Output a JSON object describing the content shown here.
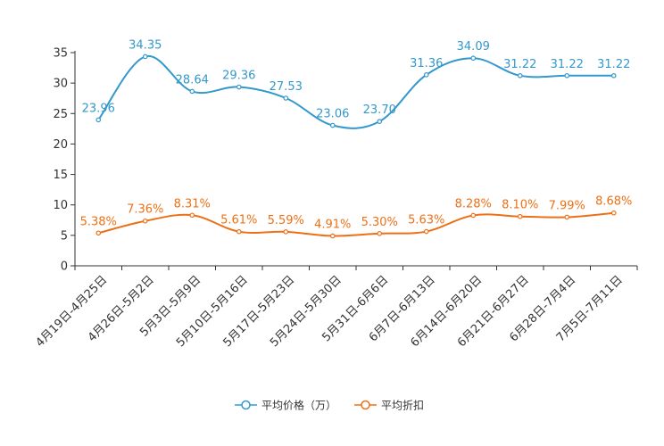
{
  "chart_data": {
    "type": "line",
    "smooth": true,
    "categories": [
      "4月19日-4月25日",
      "4月26日-5月2日",
      "5月3日-5月9日",
      "5月10日-5月16日",
      "5月17日-5月23日",
      "5月24日-5月30日",
      "5月31日-6月6日",
      "6月7日-6月13日",
      "6月14日-6月20日",
      "6月21日-6月27日",
      "6月28日-7月4日",
      "7月5日-7月11日"
    ],
    "ylim": [
      0,
      35
    ],
    "yticks": [
      0,
      5,
      10,
      15,
      20,
      25,
      30,
      35
    ],
    "legend_position": "bottom-center",
    "series": [
      {
        "name": "平均价格（万）",
        "color": "#3398cc",
        "values": [
          23.96,
          34.35,
          28.64,
          29.36,
          27.53,
          23.06,
          23.7,
          31.36,
          34.09,
          31.22,
          31.22,
          31.22
        ],
        "labels": [
          "23.96",
          "34.35",
          "28.64",
          "29.36",
          "27.53",
          "23.06",
          "23.70",
          "31.36",
          "34.09",
          "31.22",
          "31.22",
          "31.22"
        ]
      },
      {
        "name": "平均折扣",
        "color": "#ed7016",
        "values": [
          5.38,
          7.36,
          8.31,
          5.61,
          5.59,
          4.91,
          5.3,
          5.63,
          8.28,
          8.1,
          7.99,
          8.68
        ],
        "labels": [
          "5.38%",
          "7.36%",
          "8.31%",
          "5.61%",
          "5.59%",
          "4.91%",
          "5.30%",
          "5.63%",
          "8.28%",
          "8.10%",
          "7.99%",
          "8.68%"
        ]
      }
    ]
  }
}
